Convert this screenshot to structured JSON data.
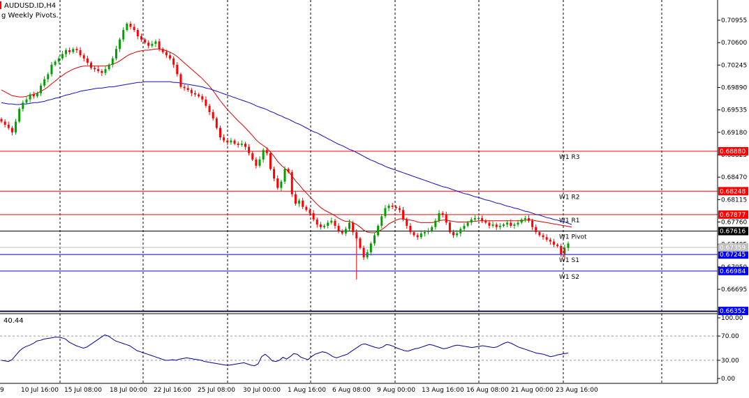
{
  "chart_data": {
    "type": "candlestick",
    "title": "AUDUSD.ID,H4",
    "indicator_caption": "g Weekly Pivots.",
    "price_axis_ticks": [
      "0.70955",
      "0.70600",
      "0.70245",
      "0.69890",
      "0.69535",
      "0.69180",
      "0.68825",
      "0.68470",
      "0.68115",
      "0.67760",
      "0.67405",
      "0.67050",
      "0.66695"
    ],
    "ylim": [
      0.6635,
      0.7112
    ],
    "time_axis_labels": [
      "9",
      "10 Jul 16:00",
      "15 Jul 08:00",
      "18 Jul 00:00",
      "22 Jul 16:00",
      "25 Jul 08:00",
      "30 Jul 00:00",
      "1 Aug 16:00",
      "6 Aug 08:00",
      "9 Aug 00:00",
      "13 Aug 16:00",
      "16 Aug 08:00",
      "21 Aug 00:00",
      "23 Aug 16:00"
    ],
    "pivot_levels": [
      {
        "name": "W1 R3",
        "value": 0.6888,
        "tag": "0.68880",
        "color": "#ff0000"
      },
      {
        "name": "W1 R2",
        "value": 0.68248,
        "tag": "0.68248",
        "color": "#ff0000"
      },
      {
        "name": "W1 R1",
        "value": 0.67877,
        "tag": "0.67877",
        "color": "#ff0000"
      },
      {
        "name": "W1 Pivot",
        "value": 0.67616,
        "tag": "0.67616",
        "color": "#000000"
      },
      {
        "name": "W1 S1",
        "value": 0.67245,
        "tag": "0.67245",
        "color": "#0000ff"
      },
      {
        "name": "W1 S2",
        "value": 0.66984,
        "tag": "0.66984",
        "color": "#0000ff"
      }
    ],
    "current_price": {
      "value": 0.67359,
      "tag": "0.67359",
      "color": "#c0c0c0"
    },
    "lower_tag": {
      "value": 0.66352,
      "tag": "0.66352",
      "color": "#0000ff"
    },
    "close_series": [
      0.6935,
      0.693,
      0.6925,
      0.6918,
      0.6935,
      0.6955,
      0.6965,
      0.697,
      0.6978,
      0.6975,
      0.698,
      0.6992,
      0.7002,
      0.701,
      0.7025,
      0.703,
      0.7035,
      0.7042,
      0.7048,
      0.7045,
      0.705,
      0.7048,
      0.704,
      0.7035,
      0.7028,
      0.702,
      0.7018,
      0.7015,
      0.7012,
      0.7018,
      0.7025,
      0.7035,
      0.705,
      0.7065,
      0.708,
      0.709,
      0.7085,
      0.708,
      0.707,
      0.7065,
      0.706,
      0.7055,
      0.7058,
      0.7062,
      0.705,
      0.7045,
      0.704,
      0.7035,
      0.7025,
      0.701,
      0.699,
      0.6988,
      0.6985,
      0.698,
      0.6978,
      0.6975,
      0.697,
      0.696,
      0.695,
      0.694,
      0.6925,
      0.691,
      0.6905,
      0.6902,
      0.6905,
      0.69,
      0.6898,
      0.69,
      0.6895,
      0.6885,
      0.6875,
      0.6865,
      0.6875,
      0.689,
      0.6885,
      0.686,
      0.6845,
      0.683,
      0.684,
      0.686,
      0.6855,
      0.682,
      0.6805,
      0.681,
      0.68,
      0.6795,
      0.679,
      0.678,
      0.6772,
      0.6768,
      0.677,
      0.6775,
      0.6778,
      0.677,
      0.6762,
      0.6758,
      0.6765,
      0.6775,
      0.676,
      0.675,
      0.6735,
      0.672,
      0.6728,
      0.6742,
      0.6755,
      0.677,
      0.6785,
      0.6798,
      0.6802,
      0.68,
      0.6798,
      0.6795,
      0.678,
      0.677,
      0.676,
      0.6755,
      0.6752,
      0.6758,
      0.676,
      0.6762,
      0.6768,
      0.6778,
      0.679,
      0.6788,
      0.6775,
      0.676,
      0.6755,
      0.6758,
      0.6765,
      0.677,
      0.6775,
      0.678,
      0.6782,
      0.6782,
      0.6778,
      0.6775,
      0.677,
      0.6772,
      0.6768,
      0.677,
      0.6772,
      0.6775,
      0.677,
      0.6772,
      0.6775,
      0.678,
      0.6782,
      0.6778,
      0.6768,
      0.676,
      0.6755,
      0.6752,
      0.6748,
      0.6745,
      0.674,
      0.6738,
      0.6725,
      0.6735,
      0.6742
    ],
    "ma_red": [
      0.6985,
      0.6982,
      0.6979,
      0.6976,
      0.6975,
      0.6974,
      0.6974,
      0.6975,
      0.6977,
      0.6978,
      0.698,
      0.6983,
      0.6986,
      0.699,
      0.6995,
      0.6999,
      0.7004,
      0.7008,
      0.7012,
      0.7015,
      0.7018,
      0.702,
      0.7022,
      0.7023,
      0.7023,
      0.7023,
      0.7023,
      0.7023,
      0.7023,
      0.7023,
      0.7024,
      0.7026,
      0.7028,
      0.7031,
      0.7035,
      0.7039,
      0.7042,
      0.7044,
      0.7046,
      0.7047,
      0.7048,
      0.7048,
      0.7049,
      0.705,
      0.705,
      0.7049,
      0.7047,
      0.7045,
      0.7042,
      0.7038,
      0.7033,
      0.7028,
      0.7023,
      0.7018,
      0.7013,
      0.7008,
      0.7003,
      0.6997,
      0.6991,
      0.6984,
      0.6976,
      0.6968,
      0.6961,
      0.6954,
      0.6948,
      0.6942,
      0.6936,
      0.6931,
      0.6925,
      0.6919,
      0.6913,
      0.6906,
      0.6901,
      0.6897,
      0.6893,
      0.6887,
      0.688,
      0.6872,
      0.6866,
      0.6861,
      0.6856,
      0.6849,
      0.6841,
      0.6835,
      0.6828,
      0.6822,
      0.6816,
      0.681,
      0.6804,
      0.6799,
      0.6795,
      0.6792,
      0.6789,
      0.6786,
      0.6782,
      0.6779,
      0.6777,
      0.6777,
      0.6775,
      0.6772,
      0.6768,
      0.6763,
      0.676,
      0.6759,
      0.6759,
      0.6761,
      0.6764,
      0.6768,
      0.6773,
      0.6776,
      0.6779,
      0.6781,
      0.6781,
      0.678,
      0.6779,
      0.6778,
      0.6776,
      0.6775,
      0.6775,
      0.6775,
      0.6775,
      0.6776,
      0.6778,
      0.6779,
      0.6779,
      0.6778,
      0.6777,
      0.6776,
      0.6776,
      0.6776,
      0.6776,
      0.6777,
      0.6777,
      0.6778,
      0.6778,
      0.6778,
      0.6778,
      0.6778,
      0.6778,
      0.6778,
      0.6778,
      0.6778,
      0.6778,
      0.6778,
      0.6778,
      0.6778,
      0.6779,
      0.6779,
      0.6779,
      0.6778,
      0.6777,
      0.6776,
      0.6775,
      0.6774,
      0.6773,
      0.6772,
      0.6771,
      0.677,
      0.6769,
      0.6768
    ],
    "ma_blue": [
      0.6965,
      0.6964,
      0.6963,
      0.6963,
      0.6962,
      0.6962,
      0.6963,
      0.6963,
      0.6964,
      0.6965,
      0.6965,
      0.6966,
      0.6967,
      0.6969,
      0.697,
      0.6972,
      0.6973,
      0.6975,
      0.6977,
      0.6978,
      0.698,
      0.6981,
      0.6983,
      0.6984,
      0.6985,
      0.6986,
      0.6987,
      0.6988,
      0.6988,
      0.6989,
      0.699,
      0.699,
      0.6991,
      0.6992,
      0.6993,
      0.6994,
      0.6995,
      0.6996,
      0.6997,
      0.6997,
      0.6998,
      0.6998,
      0.6998,
      0.6998,
      0.6998,
      0.6998,
      0.6998,
      0.6998,
      0.6997,
      0.6997,
      0.6996,
      0.6995,
      0.6994,
      0.6993,
      0.6992,
      0.6991,
      0.699,
      0.6988,
      0.6987,
      0.6985,
      0.6983,
      0.6981,
      0.6979,
      0.6977,
      0.6975,
      0.6973,
      0.6971,
      0.6969,
      0.6967,
      0.6965,
      0.6963,
      0.696,
      0.6958,
      0.6956,
      0.6954,
      0.6951,
      0.6949,
      0.6946,
      0.6944,
      0.6941,
      0.6939,
      0.6936,
      0.6933,
      0.6931,
      0.6928,
      0.6925,
      0.6922,
      0.6919,
      0.6917,
      0.6914,
      0.6911,
      0.6908,
      0.6905,
      0.6902,
      0.6899,
      0.6897,
      0.6894,
      0.6891,
      0.6889,
      0.6886,
      0.6883,
      0.688,
      0.6877,
      0.6874,
      0.6872,
      0.6869,
      0.6867,
      0.6864,
      0.6862,
      0.686,
      0.6858,
      0.6856,
      0.6854,
      0.6852,
      0.685,
      0.6848,
      0.6846,
      0.6844,
      0.6842,
      0.684,
      0.6838,
      0.6836,
      0.6834,
      0.6832,
      0.6831,
      0.6829,
      0.6827,
      0.6825,
      0.6823,
      0.6821,
      0.682,
      0.6818,
      0.6816,
      0.6815,
      0.6813,
      0.6811,
      0.681,
      0.6808,
      0.6806,
      0.6805,
      0.6803,
      0.6801,
      0.68,
      0.6798,
      0.6797,
      0.6795,
      0.6793,
      0.6792,
      0.679,
      0.6788,
      0.6787,
      0.6785,
      0.6783,
      0.6782,
      0.678,
      0.6779,
      0.6777,
      0.6776,
      0.6774,
      0.6772
    ],
    "rsi": {
      "current_label": "40.44",
      "ticks": [
        "100.00",
        "70.00",
        "30.00",
        "0.00"
      ],
      "levels": [
        70,
        30
      ],
      "ylim": [
        0,
        100
      ],
      "values": [
        30,
        29,
        28,
        31,
        38,
        45,
        50,
        53,
        55,
        58,
        62,
        63,
        65,
        66,
        67,
        68,
        68,
        67,
        65,
        60,
        57,
        54,
        52,
        50,
        52,
        56,
        60,
        64,
        68,
        72,
        70,
        66,
        62,
        60,
        58,
        56,
        54,
        50,
        46,
        44,
        42,
        40,
        38,
        36,
        34,
        32,
        30,
        30,
        31,
        30,
        32,
        33,
        34,
        33,
        32,
        31,
        30,
        28,
        27,
        26,
        25,
        24,
        23,
        22,
        22,
        23,
        24,
        25,
        26,
        24,
        22,
        21,
        24,
        36,
        40,
        35,
        29,
        28,
        30,
        35,
        32,
        36,
        41,
        40,
        35,
        33,
        31,
        36,
        40,
        42,
        44,
        43,
        40,
        36,
        34,
        36,
        38,
        40,
        44,
        48,
        52,
        56,
        57,
        55,
        53,
        51,
        50,
        52,
        56,
        55,
        53,
        50,
        48,
        46,
        45,
        47,
        49,
        50,
        52,
        54,
        56,
        55,
        53,
        51,
        49,
        50,
        52,
        54,
        55,
        54,
        53,
        52,
        51,
        52,
        53,
        54,
        53,
        52,
        51,
        52,
        55,
        58,
        60,
        58,
        55,
        52,
        50,
        48,
        46,
        44,
        42,
        41,
        40,
        38,
        36,
        37,
        39,
        40,
        41,
        42
      ]
    }
  }
}
